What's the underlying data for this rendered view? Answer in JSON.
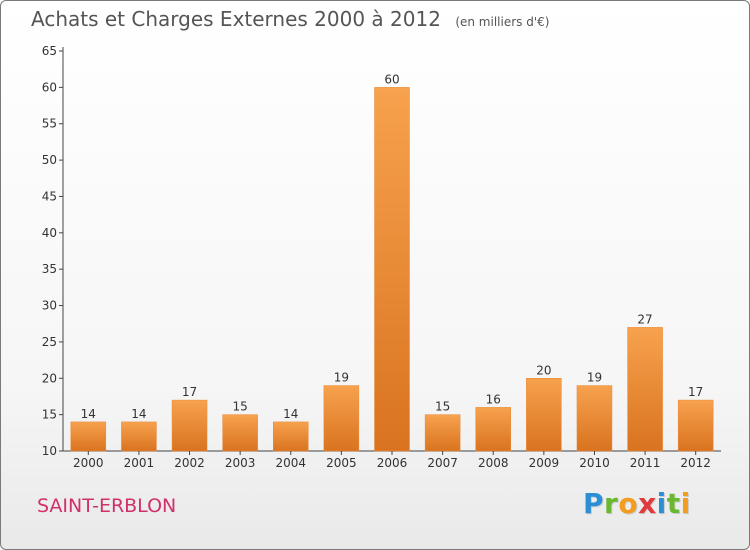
{
  "chart_data": {
    "type": "bar",
    "title": "Achats et Charges Externes 2000 à 2012",
    "subtitle": "(en milliers d'€)",
    "categories": [
      "2000",
      "2001",
      "2002",
      "2003",
      "2004",
      "2005",
      "2006",
      "2007",
      "2008",
      "2009",
      "2010",
      "2011",
      "2012"
    ],
    "values": [
      14,
      14,
      17,
      15,
      14,
      19,
      60,
      15,
      16,
      20,
      19,
      27,
      17
    ],
    "ylim": [
      10,
      65
    ],
    "yticks": [
      10,
      15,
      20,
      25,
      30,
      35,
      40,
      45,
      50,
      55,
      60,
      65
    ],
    "grid": false,
    "bar_color_top": "#f7a24e",
    "bar_color_bottom": "#d9731f"
  },
  "footer": {
    "commune": "SAINT-ERBLON"
  },
  "logo": {
    "letters": [
      {
        "char": "P",
        "color": "#2b8fd6"
      },
      {
        "char": "r",
        "color": "#6ab830"
      },
      {
        "char": "o",
        "color": "#f39c1e"
      },
      {
        "char": "x",
        "color": "#e0393e"
      },
      {
        "char": "i",
        "color": "#2b8fd6"
      },
      {
        "char": "t",
        "color": "#6ab830"
      },
      {
        "char": "i",
        "color": "#f39c1e"
      }
    ]
  }
}
